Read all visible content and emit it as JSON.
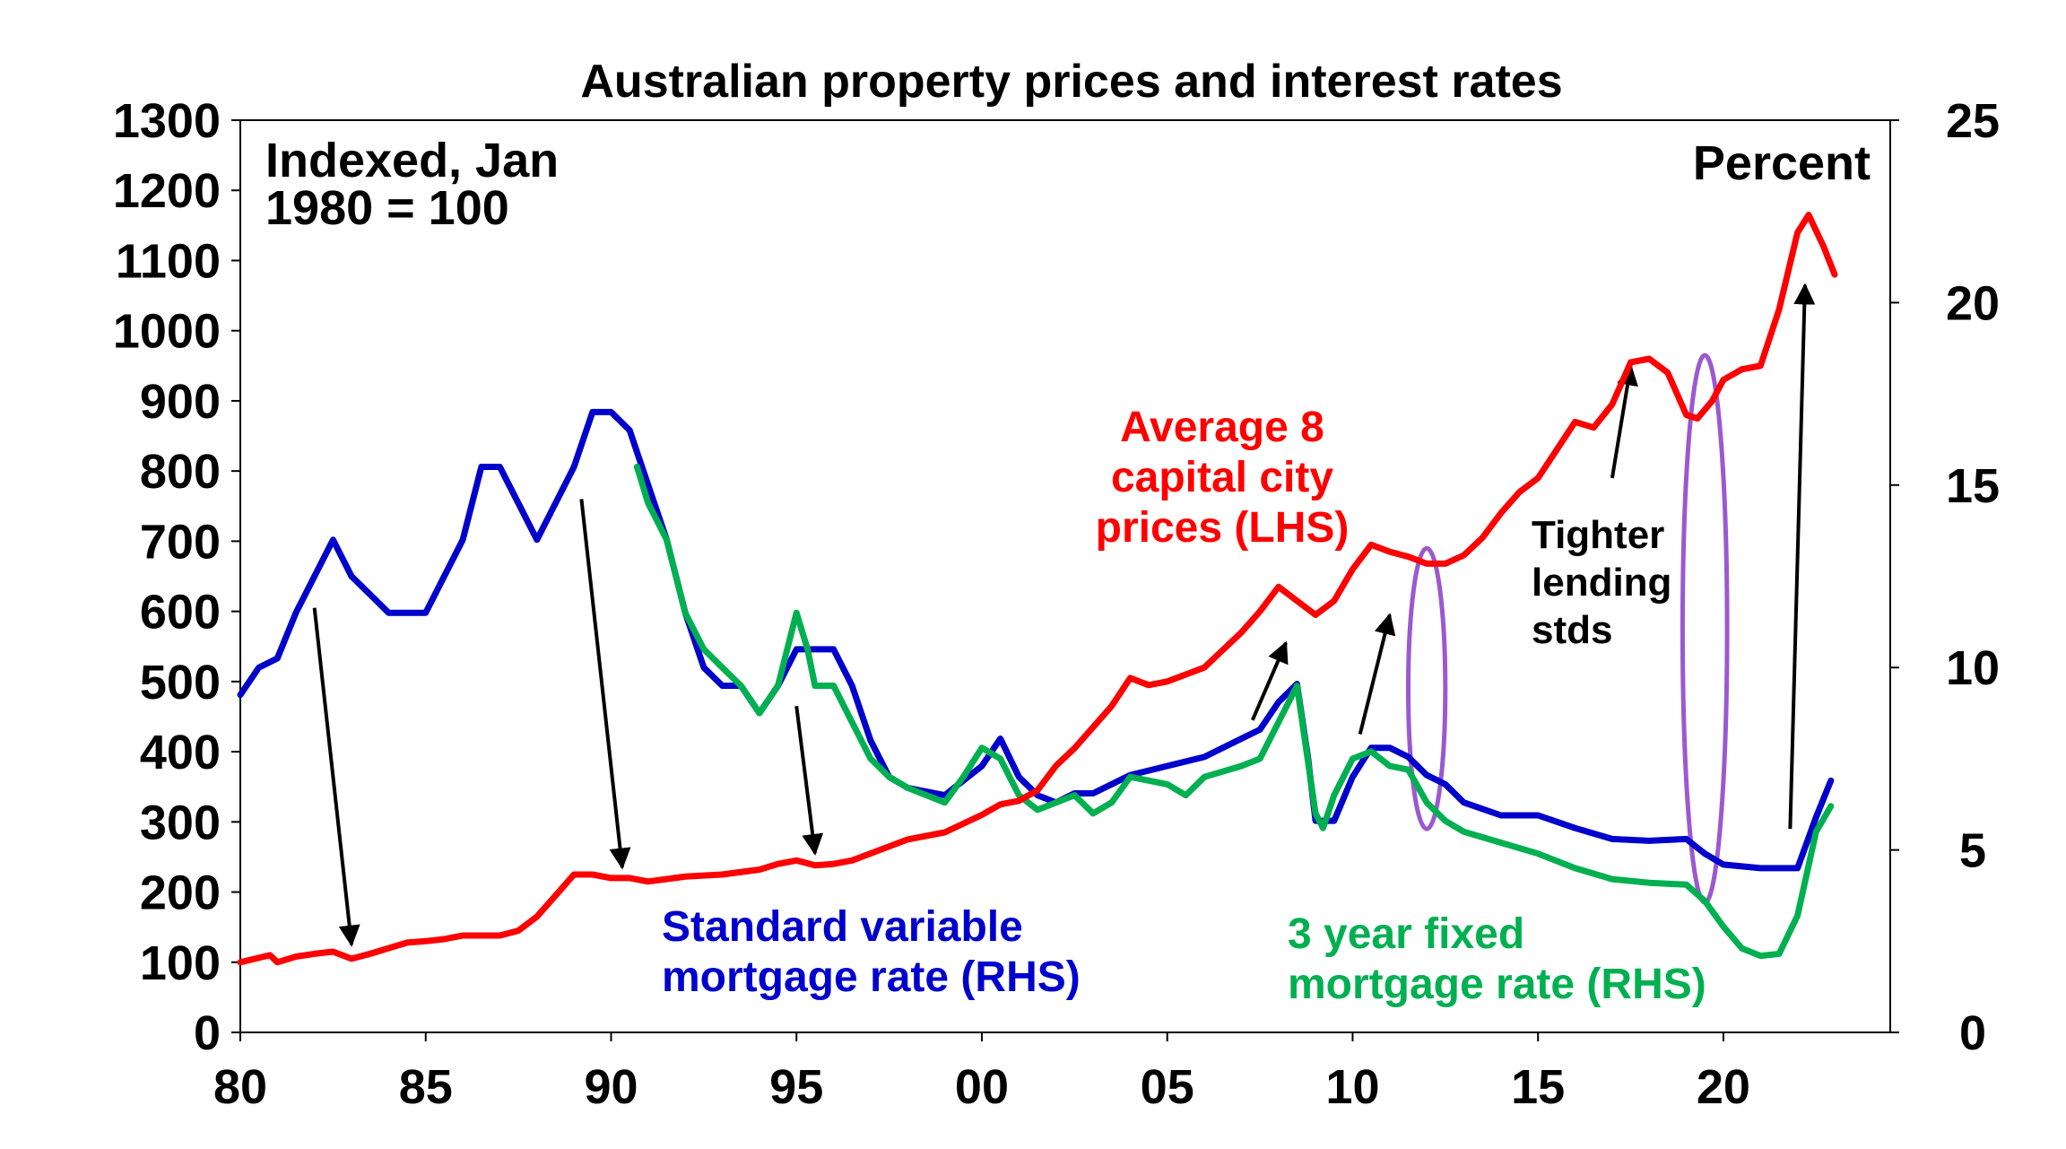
{
  "chart_data": {
    "type": "line",
    "title": "Australian property prices and interest rates",
    "left_axis_note": [
      "Indexed, Jan",
      "1980 = 100"
    ],
    "right_axis_note": "Percent",
    "xlabel": "",
    "ylabel_left": "",
    "ylabel_right": "",
    "xlim": [
      1980,
      2024.5
    ],
    "ylim_left": [
      0,
      1300
    ],
    "ylim_right": [
      0,
      25
    ],
    "x_ticks": [
      {
        "value": 1980,
        "label": "80"
      },
      {
        "value": 1985,
        "label": "85"
      },
      {
        "value": 1990,
        "label": "90"
      },
      {
        "value": 1995,
        "label": "95"
      },
      {
        "value": 2000,
        "label": "00"
      },
      {
        "value": 2005,
        "label": "05"
      },
      {
        "value": 2010,
        "label": "10"
      },
      {
        "value": 2015,
        "label": "15"
      },
      {
        "value": 2020,
        "label": "20"
      }
    ],
    "y_left_ticks": [
      0,
      100,
      200,
      300,
      400,
      500,
      600,
      700,
      800,
      900,
      1000,
      1100,
      1200,
      1300
    ],
    "y_right_ticks": [
      0,
      5,
      10,
      15,
      20,
      25
    ],
    "series": [
      {
        "name": "Average 8 capital city prices (LHS)",
        "axis": "left",
        "color": "#ff0000",
        "label_lines": [
          "Average 8",
          "capital city",
          "prices (LHS)"
        ],
        "points": [
          [
            1980,
            100
          ],
          [
            1980.8,
            110
          ],
          [
            1981,
            100
          ],
          [
            1981.5,
            108
          ],
          [
            1982,
            112
          ],
          [
            1982.5,
            115
          ],
          [
            1983,
            105
          ],
          [
            1983.5,
            112
          ],
          [
            1984,
            120
          ],
          [
            1984.5,
            128
          ],
          [
            1985,
            130
          ],
          [
            1985.5,
            133
          ],
          [
            1986,
            138
          ],
          [
            1987,
            138
          ],
          [
            1987.5,
            145
          ],
          [
            1988,
            165
          ],
          [
            1988.5,
            195
          ],
          [
            1989,
            225
          ],
          [
            1989.5,
            225
          ],
          [
            1990,
            220
          ],
          [
            1990.5,
            220
          ],
          [
            1991,
            215
          ],
          [
            1992,
            222
          ],
          [
            1993,
            225
          ],
          [
            1994,
            232
          ],
          [
            1994.5,
            240
          ],
          [
            1995,
            245
          ],
          [
            1995.5,
            238
          ],
          [
            1996,
            240
          ],
          [
            1996.5,
            245
          ],
          [
            1997,
            255
          ],
          [
            1998,
            275
          ],
          [
            1999,
            285
          ],
          [
            2000,
            310
          ],
          [
            2000.5,
            325
          ],
          [
            2001,
            330
          ],
          [
            2001.5,
            345
          ],
          [
            2002,
            380
          ],
          [
            2002.5,
            405
          ],
          [
            2003,
            435
          ],
          [
            2003.5,
            465
          ],
          [
            2004,
            505
          ],
          [
            2004.5,
            495
          ],
          [
            2005,
            500
          ],
          [
            2006,
            520
          ],
          [
            2006.5,
            545
          ],
          [
            2007,
            570
          ],
          [
            2007.5,
            600
          ],
          [
            2008,
            635
          ],
          [
            2008.5,
            615
          ],
          [
            2009,
            595
          ],
          [
            2009.5,
            615
          ],
          [
            2010,
            660
          ],
          [
            2010.5,
            695
          ],
          [
            2011,
            685
          ],
          [
            2011.5,
            678
          ],
          [
            2012,
            668
          ],
          [
            2012.5,
            668
          ],
          [
            2013,
            680
          ],
          [
            2013.5,
            705
          ],
          [
            2014,
            740
          ],
          [
            2014.5,
            770
          ],
          [
            2015,
            790
          ],
          [
            2015.5,
            830
          ],
          [
            2016,
            870
          ],
          [
            2016.5,
            862
          ],
          [
            2017,
            895
          ],
          [
            2017.5,
            955
          ],
          [
            2018,
            960
          ],
          [
            2018.5,
            940
          ],
          [
            2019,
            880
          ],
          [
            2019.3,
            875
          ],
          [
            2019.7,
            900
          ],
          [
            2020,
            930
          ],
          [
            2020.5,
            945
          ],
          [
            2021,
            950
          ],
          [
            2021.5,
            1030
          ],
          [
            2022,
            1140
          ],
          [
            2022.3,
            1165
          ],
          [
            2022.7,
            1120
          ],
          [
            2023,
            1080
          ]
        ]
      },
      {
        "name": "Standard variable mortgage rate (RHS)",
        "axis": "right",
        "color": "#0000cc",
        "label_lines": [
          "Standard variable",
          "mortgage rate (RHS)"
        ],
        "points": [
          [
            1980,
            9.25
          ],
          [
            1980.5,
            10.0
          ],
          [
            1981,
            10.25
          ],
          [
            1981.5,
            11.5
          ],
          [
            1982,
            12.5
          ],
          [
            1982.5,
            13.5
          ],
          [
            1983,
            12.5
          ],
          [
            1983.5,
            12.0
          ],
          [
            1984,
            11.5
          ],
          [
            1985,
            11.5
          ],
          [
            1985.5,
            12.5
          ],
          [
            1986,
            13.5
          ],
          [
            1986.5,
            15.5
          ],
          [
            1987,
            15.5
          ],
          [
            1987.5,
            14.5
          ],
          [
            1988,
            13.5
          ],
          [
            1988.5,
            14.5
          ],
          [
            1989,
            15.5
          ],
          [
            1989.5,
            17.0
          ],
          [
            1990,
            17.0
          ],
          [
            1990.5,
            16.5
          ],
          [
            1991,
            15.0
          ],
          [
            1991.5,
            13.5
          ],
          [
            1992,
            11.5
          ],
          [
            1992.5,
            10.0
          ],
          [
            1993,
            9.5
          ],
          [
            1993.5,
            9.5
          ],
          [
            1994,
            8.75
          ],
          [
            1994.5,
            9.5
          ],
          [
            1995,
            10.5
          ],
          [
            1996,
            10.5
          ],
          [
            1996.5,
            9.5
          ],
          [
            1997,
            8.0
          ],
          [
            1997.5,
            7.0
          ],
          [
            1998,
            6.7
          ],
          [
            1999,
            6.5
          ],
          [
            2000,
            7.3
          ],
          [
            2000.5,
            8.05
          ],
          [
            2001,
            7.0
          ],
          [
            2001.5,
            6.5
          ],
          [
            2002,
            6.3
          ],
          [
            2002.5,
            6.55
          ],
          [
            2003,
            6.55
          ],
          [
            2004,
            7.05
          ],
          [
            2005,
            7.3
          ],
          [
            2006,
            7.55
          ],
          [
            2007,
            8.05
          ],
          [
            2007.5,
            8.3
          ],
          [
            2008,
            9.05
          ],
          [
            2008.5,
            9.55
          ],
          [
            2008.8,
            7.5
          ],
          [
            2009,
            5.8
          ],
          [
            2009.5,
            5.8
          ],
          [
            2010,
            7.0
          ],
          [
            2010.5,
            7.8
          ],
          [
            2011,
            7.8
          ],
          [
            2011.5,
            7.55
          ],
          [
            2012,
            7.05
          ],
          [
            2012.5,
            6.8
          ],
          [
            2013,
            6.3
          ],
          [
            2014,
            5.95
          ],
          [
            2015,
            5.95
          ],
          [
            2016,
            5.6
          ],
          [
            2017,
            5.3
          ],
          [
            2018,
            5.25
          ],
          [
            2019,
            5.3
          ],
          [
            2019.5,
            4.9
          ],
          [
            2020,
            4.6
          ],
          [
            2021,
            4.5
          ],
          [
            2022,
            4.5
          ],
          [
            2022.5,
            5.9
          ],
          [
            2022.9,
            6.9
          ]
        ]
      },
      {
        "name": "3 year fixed mortgage rate (RHS)",
        "axis": "right",
        "color": "#00b050",
        "label_lines": [
          "3 year fixed",
          "mortgage rate (RHS)"
        ],
        "points": [
          [
            1990.7,
            15.5
          ],
          [
            1991,
            14.5
          ],
          [
            1991.5,
            13.5
          ],
          [
            1992,
            11.5
          ],
          [
            1992.5,
            10.5
          ],
          [
            1993,
            10.0
          ],
          [
            1993.5,
            9.5
          ],
          [
            1994,
            8.75
          ],
          [
            1994.5,
            9.5
          ],
          [
            1995,
            11.5
          ],
          [
            1995.3,
            10.5
          ],
          [
            1995.5,
            9.5
          ],
          [
            1996,
            9.5
          ],
          [
            1996.5,
            8.5
          ],
          [
            1997,
            7.5
          ],
          [
            1997.5,
            7.0
          ],
          [
            1998,
            6.7
          ],
          [
            1999,
            6.3
          ],
          [
            1999.5,
            7.0
          ],
          [
            2000,
            7.8
          ],
          [
            2000.5,
            7.5
          ],
          [
            2001,
            6.5
          ],
          [
            2001.5,
            6.1
          ],
          [
            2002,
            6.3
          ],
          [
            2002.5,
            6.5
          ],
          [
            2003,
            6.0
          ],
          [
            2003.5,
            6.3
          ],
          [
            2004,
            7.0
          ],
          [
            2005,
            6.8
          ],
          [
            2005.5,
            6.5
          ],
          [
            2006,
            7.0
          ],
          [
            2007,
            7.3
          ],
          [
            2007.5,
            7.5
          ],
          [
            2008,
            8.5
          ],
          [
            2008.5,
            9.5
          ],
          [
            2009,
            6.0
          ],
          [
            2009.2,
            5.6
          ],
          [
            2009.5,
            6.5
          ],
          [
            2010,
            7.5
          ],
          [
            2010.5,
            7.7
          ],
          [
            2011,
            7.3
          ],
          [
            2011.5,
            7.2
          ],
          [
            2012,
            6.3
          ],
          [
            2012.5,
            5.8
          ],
          [
            2013,
            5.5
          ],
          [
            2014,
            5.2
          ],
          [
            2015,
            4.9
          ],
          [
            2016,
            4.5
          ],
          [
            2017,
            4.2
          ],
          [
            2018,
            4.1
          ],
          [
            2019,
            4.05
          ],
          [
            2019.5,
            3.6
          ],
          [
            2020,
            2.9
          ],
          [
            2020.5,
            2.3
          ],
          [
            2021,
            2.1
          ],
          [
            2021.5,
            2.15
          ],
          [
            2022,
            3.2
          ],
          [
            2022.5,
            5.5
          ],
          [
            2022.9,
            6.2
          ]
        ]
      }
    ],
    "annotations": {
      "tighter_lending": [
        "Tighter",
        "lending",
        "stds"
      ],
      "arrows": [
        {
          "from": [
            1982.0,
            605
          ],
          "to": [
            1983.0,
            125
          ]
        },
        {
          "from": [
            1989.2,
            760
          ],
          "to": [
            1990.3,
            235
          ]
        },
        {
          "from": [
            1995.0,
            465
          ],
          "to": [
            1995.5,
            255
          ]
        },
        {
          "from": [
            2007.3,
            445
          ],
          "to": [
            2008.2,
            555
          ]
        },
        {
          "from": [
            2010.2,
            425
          ],
          "to": [
            2011.0,
            595
          ]
        },
        {
          "from": [
            2017.0,
            790
          ],
          "to": [
            2017.5,
            950
          ]
        },
        {
          "from": [
            2021.8,
            290
          ],
          "to": [
            2022.2,
            1065
          ]
        }
      ],
      "ellipses": [
        {
          "center": [
            2012.0,
            490
          ],
          "rx_years": 0.5,
          "ry_index": 200
        },
        {
          "center": [
            2019.5,
            575
          ],
          "rx_years": 0.6,
          "ry_index": 390
        }
      ]
    }
  }
}
